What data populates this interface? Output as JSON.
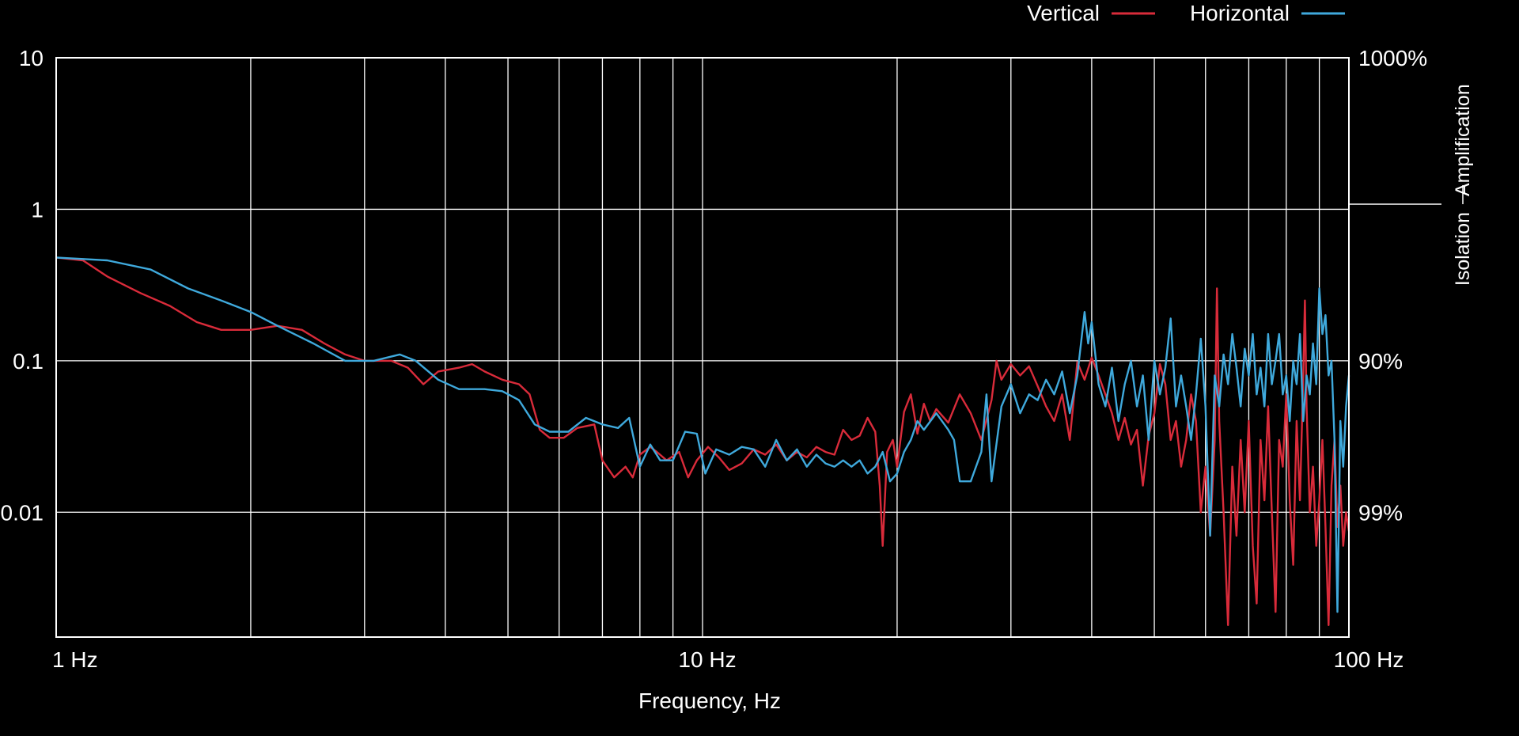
{
  "chart_data": {
    "type": "line",
    "xscale": "log",
    "yscale": "log",
    "xlim": [
      1,
      100
    ],
    "ylim": [
      0.0015,
      10
    ],
    "xlabel": "Frequency, Hz",
    "grid": true,
    "legend_position": "top-right",
    "x_ticks": [
      {
        "value": 1,
        "label": "1 Hz"
      },
      {
        "value": 10,
        "label": "10 Hz"
      },
      {
        "value": 100,
        "label": "100 Hz"
      }
    ],
    "y_ticks": [
      {
        "value": 10,
        "label": "10"
      },
      {
        "value": 1,
        "label": "1"
      },
      {
        "value": 0.1,
        "label": "0.1"
      },
      {
        "value": 0.01,
        "label": "0.01"
      }
    ],
    "right_ticks": [
      {
        "value": 10,
        "label": "1000%"
      },
      {
        "value": 0.1,
        "label": "90%"
      },
      {
        "value": 0.01,
        "label": "99%"
      }
    ],
    "side_labels": {
      "upper": "Amplification",
      "lower": "Isolation"
    },
    "series": [
      {
        "name": "Vertical",
        "color": "#d92b3a",
        "points": [
          [
            1.0,
            0.48
          ],
          [
            1.1,
            0.46
          ],
          [
            1.2,
            0.36
          ],
          [
            1.35,
            0.28
          ],
          [
            1.5,
            0.23
          ],
          [
            1.65,
            0.18
          ],
          [
            1.8,
            0.16
          ],
          [
            2.0,
            0.16
          ],
          [
            2.2,
            0.17
          ],
          [
            2.4,
            0.16
          ],
          [
            2.6,
            0.13
          ],
          [
            2.8,
            0.11
          ],
          [
            3.0,
            0.1
          ],
          [
            3.3,
            0.1
          ],
          [
            3.5,
            0.09
          ],
          [
            3.7,
            0.07
          ],
          [
            3.9,
            0.085
          ],
          [
            4.2,
            0.09
          ],
          [
            4.4,
            0.095
          ],
          [
            4.6,
            0.085
          ],
          [
            4.9,
            0.075
          ],
          [
            5.2,
            0.07
          ],
          [
            5.4,
            0.06
          ],
          [
            5.6,
            0.035
          ],
          [
            5.8,
            0.031
          ],
          [
            6.1,
            0.031
          ],
          [
            6.4,
            0.036
          ],
          [
            6.8,
            0.038
          ],
          [
            7.0,
            0.022
          ],
          [
            7.3,
            0.017
          ],
          [
            7.6,
            0.02
          ],
          [
            7.8,
            0.017
          ],
          [
            8.0,
            0.024
          ],
          [
            8.3,
            0.027
          ],
          [
            8.5,
            0.025
          ],
          [
            8.8,
            0.022
          ],
          [
            9.2,
            0.025
          ],
          [
            9.5,
            0.017
          ],
          [
            9.8,
            0.022
          ],
          [
            10.2,
            0.027
          ],
          [
            10.6,
            0.023
          ],
          [
            11.0,
            0.019
          ],
          [
            11.5,
            0.021
          ],
          [
            12.0,
            0.026
          ],
          [
            12.5,
            0.024
          ],
          [
            13.0,
            0.028
          ],
          [
            13.5,
            0.022
          ],
          [
            14.0,
            0.025
          ],
          [
            14.5,
            0.023
          ],
          [
            15.0,
            0.027
          ],
          [
            15.5,
            0.025
          ],
          [
            16.0,
            0.024
          ],
          [
            16.5,
            0.035
          ],
          [
            17.0,
            0.03
          ],
          [
            17.5,
            0.032
          ],
          [
            18.0,
            0.042
          ],
          [
            18.5,
            0.034
          ],
          [
            18.8,
            0.015
          ],
          [
            19.0,
            0.006
          ],
          [
            19.3,
            0.025
          ],
          [
            19.7,
            0.03
          ],
          [
            20.0,
            0.02
          ],
          [
            20.5,
            0.046
          ],
          [
            21.0,
            0.06
          ],
          [
            21.5,
            0.033
          ],
          [
            22.0,
            0.052
          ],
          [
            22.5,
            0.04
          ],
          [
            23.0,
            0.048
          ],
          [
            24.0,
            0.039
          ],
          [
            25.0,
            0.06
          ],
          [
            26.0,
            0.045
          ],
          [
            27.0,
            0.03
          ],
          [
            28.0,
            0.055
          ],
          [
            28.5,
            0.1
          ],
          [
            29.0,
            0.075
          ],
          [
            30.0,
            0.095
          ],
          [
            31.0,
            0.08
          ],
          [
            32.0,
            0.092
          ],
          [
            33.0,
            0.068
          ],
          [
            34.0,
            0.05
          ],
          [
            35.0,
            0.04
          ],
          [
            36.0,
            0.06
          ],
          [
            37.0,
            0.03
          ],
          [
            38.0,
            0.098
          ],
          [
            39.0,
            0.075
          ],
          [
            40.0,
            0.105
          ],
          [
            41.0,
            0.08
          ],
          [
            42.0,
            0.06
          ],
          [
            43.0,
            0.045
          ],
          [
            44.0,
            0.03
          ],
          [
            45.0,
            0.042
          ],
          [
            46.0,
            0.028
          ],
          [
            47.0,
            0.035
          ],
          [
            48.0,
            0.015
          ],
          [
            49.0,
            0.032
          ],
          [
            50.0,
            0.045
          ],
          [
            51.0,
            0.095
          ],
          [
            52.0,
            0.07
          ],
          [
            53.0,
            0.03
          ],
          [
            54.0,
            0.04
          ],
          [
            55.0,
            0.02
          ],
          [
            56.0,
            0.03
          ],
          [
            57.0,
            0.06
          ],
          [
            58.0,
            0.04
          ],
          [
            59.0,
            0.01
          ],
          [
            60.0,
            0.02
          ],
          [
            61.0,
            0.007
          ],
          [
            62.0,
            0.03
          ],
          [
            62.5,
            0.3
          ],
          [
            63.0,
            0.04
          ],
          [
            64.0,
            0.01
          ],
          [
            65.0,
            0.0018
          ],
          [
            66.0,
            0.02
          ],
          [
            67.0,
            0.007
          ],
          [
            68.0,
            0.03
          ],
          [
            69.0,
            0.01
          ],
          [
            70.0,
            0.04
          ],
          [
            71.0,
            0.006
          ],
          [
            72.0,
            0.0025
          ],
          [
            73.0,
            0.03
          ],
          [
            74.0,
            0.012
          ],
          [
            75.0,
            0.05
          ],
          [
            76.0,
            0.01
          ],
          [
            77.0,
            0.0022
          ],
          [
            78.0,
            0.03
          ],
          [
            79.0,
            0.02
          ],
          [
            80.0,
            0.06
          ],
          [
            81.0,
            0.012
          ],
          [
            82.0,
            0.0045
          ],
          [
            83.0,
            0.04
          ],
          [
            84.0,
            0.012
          ],
          [
            85.0,
            0.08
          ],
          [
            85.5,
            0.25
          ],
          [
            86.0,
            0.05
          ],
          [
            87.0,
            0.01
          ],
          [
            88.0,
            0.02
          ],
          [
            89.0,
            0.006
          ],
          [
            90.0,
            0.012
          ],
          [
            91.0,
            0.03
          ],
          [
            92.0,
            0.008
          ],
          [
            93.0,
            0.0018
          ],
          [
            94.0,
            0.015
          ],
          [
            95.0,
            0.03
          ],
          [
            96.0,
            0.008
          ],
          [
            97.0,
            0.015
          ],
          [
            98.0,
            0.006
          ],
          [
            99.0,
            0.01
          ],
          [
            100.0,
            0.0075
          ]
        ]
      },
      {
        "name": "Horizontal",
        "color": "#3fa9dc",
        "points": [
          [
            1.0,
            0.48
          ],
          [
            1.2,
            0.46
          ],
          [
            1.4,
            0.4
          ],
          [
            1.6,
            0.3
          ],
          [
            1.8,
            0.25
          ],
          [
            2.0,
            0.21
          ],
          [
            2.2,
            0.17
          ],
          [
            2.5,
            0.13
          ],
          [
            2.8,
            0.1
          ],
          [
            3.1,
            0.1
          ],
          [
            3.4,
            0.11
          ],
          [
            3.6,
            0.1
          ],
          [
            3.9,
            0.075
          ],
          [
            4.2,
            0.065
          ],
          [
            4.6,
            0.065
          ],
          [
            4.9,
            0.063
          ],
          [
            5.2,
            0.055
          ],
          [
            5.5,
            0.038
          ],
          [
            5.8,
            0.034
          ],
          [
            6.2,
            0.034
          ],
          [
            6.6,
            0.042
          ],
          [
            7.0,
            0.038
          ],
          [
            7.4,
            0.036
          ],
          [
            7.7,
            0.042
          ],
          [
            8.0,
            0.02
          ],
          [
            8.3,
            0.028
          ],
          [
            8.6,
            0.022
          ],
          [
            9.0,
            0.022
          ],
          [
            9.4,
            0.034
          ],
          [
            9.8,
            0.033
          ],
          [
            10.1,
            0.018
          ],
          [
            10.5,
            0.026
          ],
          [
            11.0,
            0.024
          ],
          [
            11.5,
            0.027
          ],
          [
            12.0,
            0.026
          ],
          [
            12.5,
            0.02
          ],
          [
            13.0,
            0.03
          ],
          [
            13.5,
            0.022
          ],
          [
            14.0,
            0.026
          ],
          [
            14.5,
            0.02
          ],
          [
            15.0,
            0.024
          ],
          [
            15.5,
            0.021
          ],
          [
            16.0,
            0.02
          ],
          [
            16.5,
            0.022
          ],
          [
            17.0,
            0.02
          ],
          [
            17.5,
            0.022
          ],
          [
            18.0,
            0.018
          ],
          [
            18.5,
            0.02
          ],
          [
            19.0,
            0.025
          ],
          [
            19.5,
            0.016
          ],
          [
            20.0,
            0.018
          ],
          [
            20.5,
            0.025
          ],
          [
            21.0,
            0.03
          ],
          [
            21.5,
            0.04
          ],
          [
            22.0,
            0.035
          ],
          [
            23.0,
            0.045
          ],
          [
            24.0,
            0.035
          ],
          [
            24.5,
            0.03
          ],
          [
            25.0,
            0.016
          ],
          [
            26.0,
            0.016
          ],
          [
            27.0,
            0.025
          ],
          [
            27.5,
            0.06
          ],
          [
            28.0,
            0.016
          ],
          [
            29.0,
            0.05
          ],
          [
            30.0,
            0.07
          ],
          [
            31.0,
            0.045
          ],
          [
            32.0,
            0.06
          ],
          [
            33.0,
            0.055
          ],
          [
            34.0,
            0.075
          ],
          [
            35.0,
            0.06
          ],
          [
            36.0,
            0.085
          ],
          [
            37.0,
            0.045
          ],
          [
            38.0,
            0.08
          ],
          [
            39.0,
            0.21
          ],
          [
            39.5,
            0.13
          ],
          [
            40.0,
            0.18
          ],
          [
            41.0,
            0.07
          ],
          [
            42.0,
            0.05
          ],
          [
            43.0,
            0.09
          ],
          [
            44.0,
            0.04
          ],
          [
            45.0,
            0.07
          ],
          [
            46.0,
            0.1
          ],
          [
            47.0,
            0.05
          ],
          [
            48.0,
            0.08
          ],
          [
            49.0,
            0.03
          ],
          [
            50.0,
            0.1
          ],
          [
            51.0,
            0.06
          ],
          [
            52.0,
            0.09
          ],
          [
            53.0,
            0.19
          ],
          [
            54.0,
            0.05
          ],
          [
            55.0,
            0.08
          ],
          [
            56.0,
            0.05
          ],
          [
            57.0,
            0.03
          ],
          [
            58.0,
            0.06
          ],
          [
            59.0,
            0.14
          ],
          [
            60.0,
            0.05
          ],
          [
            61.0,
            0.007
          ],
          [
            62.0,
            0.08
          ],
          [
            63.0,
            0.05
          ],
          [
            64.0,
            0.11
          ],
          [
            65.0,
            0.07
          ],
          [
            66.0,
            0.15
          ],
          [
            67.0,
            0.09
          ],
          [
            68.0,
            0.05
          ],
          [
            69.0,
            0.12
          ],
          [
            70.0,
            0.08
          ],
          [
            71.0,
            0.15
          ],
          [
            72.0,
            0.06
          ],
          [
            73.0,
            0.09
          ],
          [
            74.0,
            0.05
          ],
          [
            75.0,
            0.15
          ],
          [
            76.0,
            0.07
          ],
          [
            77.0,
            0.1
          ],
          [
            78.0,
            0.15
          ],
          [
            79.0,
            0.06
          ],
          [
            80.0,
            0.08
          ],
          [
            81.0,
            0.04
          ],
          [
            82.0,
            0.1
          ],
          [
            83.0,
            0.07
          ],
          [
            84.0,
            0.15
          ],
          [
            85.0,
            0.04
          ],
          [
            86.0,
            0.08
          ],
          [
            87.0,
            0.06
          ],
          [
            88.0,
            0.13
          ],
          [
            89.0,
            0.07
          ],
          [
            90.0,
            0.3
          ],
          [
            91.0,
            0.15
          ],
          [
            92.0,
            0.2
          ],
          [
            93.0,
            0.08
          ],
          [
            94.0,
            0.1
          ],
          [
            95.0,
            0.03
          ],
          [
            96.0,
            0.0022
          ],
          [
            97.0,
            0.04
          ],
          [
            98.0,
            0.02
          ],
          [
            99.0,
            0.05
          ],
          [
            100.0,
            0.08
          ]
        ]
      }
    ]
  }
}
